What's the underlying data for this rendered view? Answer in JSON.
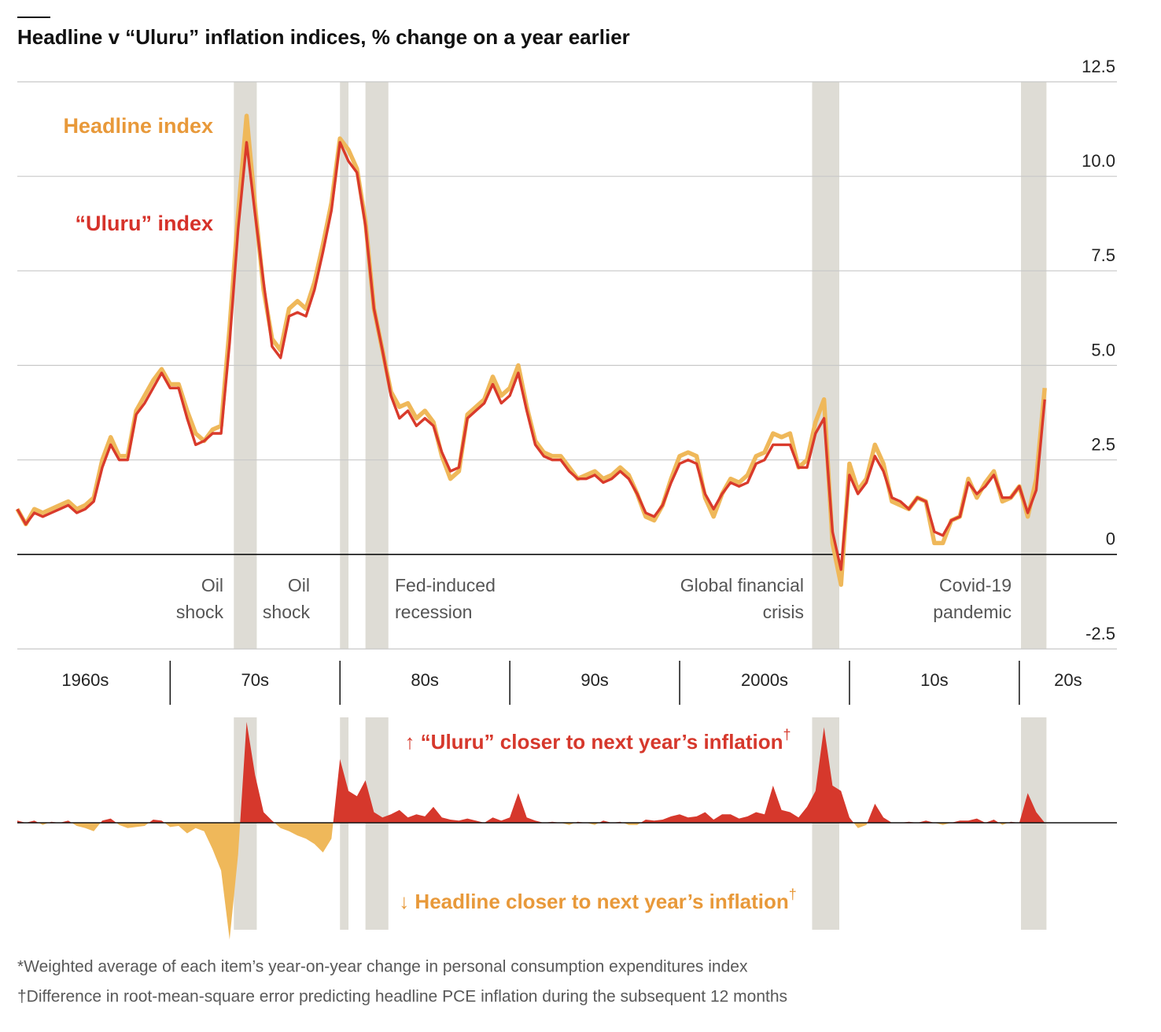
{
  "chart_data": [
    {
      "type": "line",
      "title": "Headline v “Uluru” inflation indices, % change on a year earlier",
      "xlim": [
        1961,
        2025.75
      ],
      "ylim": [
        -2.5,
        12.5
      ],
      "yticks": [
        12.5,
        {
          "value": 10,
          "label": "10.0"
        },
        {
          "value": 7.5,
          "label": "7.5"
        },
        {
          "value": 5,
          "label": "5.0"
        },
        2.5,
        0,
        -2.5
      ],
      "grid": true,
      "x": [
        1961,
        1961.5,
        1962,
        1962.5,
        1963,
        1963.5,
        1964,
        1964.5,
        1965,
        1965.5,
        1966,
        1966.5,
        1967,
        1967.5,
        1968,
        1968.5,
        1969,
        1969.5,
        1970,
        1970.5,
        1971,
        1971.5,
        1972,
        1972.5,
        1973,
        1973.5,
        1974,
        1974.5,
        1975,
        1975.5,
        1976,
        1976.5,
        1977,
        1977.5,
        1978,
        1978.5,
        1979,
        1979.5,
        1980,
        1980.5,
        1981,
        1981.5,
        1982,
        1982.5,
        1983,
        1983.5,
        1984,
        1984.5,
        1985,
        1985.5,
        1986,
        1986.5,
        1987,
        1987.5,
        1988,
        1988.5,
        1989,
        1989.5,
        1990,
        1990.5,
        1991,
        1991.5,
        1992,
        1992.5,
        1993,
        1993.5,
        1994,
        1994.5,
        1995,
        1995.5,
        1996,
        1996.5,
        1997,
        1997.5,
        1998,
        1998.5,
        1999,
        1999.5,
        2000,
        2000.5,
        2001,
        2001.5,
        2002,
        2002.5,
        2003,
        2003.5,
        2004,
        2004.5,
        2005,
        2005.5,
        2006,
        2006.5,
        2007,
        2007.5,
        2008,
        2008.5,
        2009,
        2009.5,
        2010,
        2010.5,
        2011,
        2011.5,
        2012,
        2012.5,
        2013,
        2013.5,
        2014,
        2014.5,
        2015,
        2015.5,
        2016,
        2016.5,
        2017,
        2017.5,
        2018,
        2018.5,
        2019,
        2019.5,
        2020,
        2020.5,
        2021,
        2021.5
      ],
      "series": [
        {
          "name": "Headline index",
          "color": "#efb85a",
          "label_color": "#e8993a",
          "values": [
            1.2,
            0.8,
            1.2,
            1.1,
            1.2,
            1.3,
            1.4,
            1.2,
            1.3,
            1.5,
            2.5,
            3.1,
            2.6,
            2.6,
            3.8,
            4.2,
            4.6,
            4.9,
            4.5,
            4.5,
            3.8,
            3.2,
            3.0,
            3.3,
            3.4,
            6.0,
            9.0,
            11.6,
            9.2,
            7.0,
            5.7,
            5.4,
            6.5,
            6.7,
            6.5,
            7.2,
            8.2,
            9.3,
            11.0,
            10.7,
            10.2,
            8.8,
            6.5,
            5.4,
            4.3,
            3.9,
            4.0,
            3.6,
            3.8,
            3.5,
            2.6,
            2.0,
            2.2,
            3.7,
            3.9,
            4.1,
            4.7,
            4.2,
            4.4,
            5.0,
            3.9,
            3.0,
            2.7,
            2.6,
            2.6,
            2.3,
            2.0,
            2.1,
            2.2,
            2.0,
            2.1,
            2.3,
            2.1,
            1.6,
            1.0,
            0.9,
            1.3,
            2.0,
            2.6,
            2.7,
            2.6,
            1.5,
            1.0,
            1.6,
            2.0,
            1.9,
            2.1,
            2.6,
            2.7,
            3.2,
            3.1,
            3.2,
            2.3,
            2.5,
            3.5,
            4.1,
            0.3,
            -0.8,
            2.4,
            1.7,
            2.0,
            2.9,
            2.4,
            1.4,
            1.3,
            1.2,
            1.5,
            1.4,
            0.3,
            0.3,
            0.9,
            1.0,
            2.0,
            1.5,
            1.9,
            2.2,
            1.4,
            1.5,
            1.8,
            1.0,
            2.0,
            4.4
          ]
        },
        {
          "name": "“Uluru” index",
          "color": "#d93a2b",
          "label_color": "#d6322a",
          "values": [
            1.2,
            0.8,
            1.1,
            1.0,
            1.1,
            1.2,
            1.3,
            1.1,
            1.2,
            1.4,
            2.3,
            2.9,
            2.5,
            2.5,
            3.7,
            4.0,
            4.4,
            4.8,
            4.4,
            4.4,
            3.6,
            2.9,
            3.0,
            3.2,
            3.2,
            5.6,
            8.6,
            10.9,
            9.0,
            7.2,
            5.5,
            5.2,
            6.3,
            6.4,
            6.3,
            7.0,
            8.0,
            9.1,
            10.9,
            10.4,
            10.1,
            8.7,
            6.5,
            5.4,
            4.2,
            3.6,
            3.8,
            3.4,
            3.6,
            3.4,
            2.7,
            2.2,
            2.3,
            3.6,
            3.8,
            4.0,
            4.5,
            4.0,
            4.2,
            4.8,
            3.8,
            2.9,
            2.6,
            2.5,
            2.5,
            2.2,
            2.0,
            2.0,
            2.1,
            1.9,
            2.0,
            2.2,
            2.0,
            1.6,
            1.1,
            1.0,
            1.3,
            1.9,
            2.4,
            2.5,
            2.4,
            1.6,
            1.2,
            1.6,
            1.9,
            1.8,
            1.9,
            2.4,
            2.5,
            2.9,
            2.9,
            2.9,
            2.3,
            2.3,
            3.2,
            3.6,
            0.6,
            -0.4,
            2.1,
            1.6,
            1.9,
            2.6,
            2.2,
            1.5,
            1.4,
            1.2,
            1.5,
            1.4,
            0.6,
            0.5,
            0.9,
            1.0,
            1.9,
            1.6,
            1.8,
            2.1,
            1.5,
            1.5,
            1.8,
            1.1,
            1.7,
            4.1
          ]
        }
      ],
      "shaded": [
        [
          1973.75,
          1975.1
        ],
        [
          1980.0,
          1980.5
        ],
        [
          1981.5,
          1982.85
        ],
        [
          2007.8,
          2009.4
        ],
        [
          2020.1,
          2021.6
        ]
      ],
      "annotations": [
        [
          "Oil",
          "shock"
        ],
        [
          "Oil",
          "shock"
        ],
        [
          "Fed-induced",
          "recession"
        ],
        [
          "Global financial",
          "crisis"
        ],
        [
          "Covid-19",
          "pandemic"
        ]
      ],
      "decades": {
        "labels": [
          "1960s",
          "70s",
          "80s",
          "90s",
          "2000s",
          "10s",
          "20s"
        ],
        "dividers": [
          1970,
          1980,
          1990,
          2000,
          2010,
          2020
        ]
      }
    },
    {
      "type": "area",
      "xlim": [
        1961,
        2025.75
      ],
      "ylim": [
        -1.1,
        1.0
      ],
      "color_above": "#d6382c",
      "color_below": "#efb85a",
      "label_above": {
        "text": "↑ “Uluru” closer to next year’s inflation",
        "mark": "†"
      },
      "label_below": {
        "text": "↓ Headline closer to next year’s inflation",
        "mark": "†"
      },
      "x": [
        1961,
        1961.5,
        1962,
        1962.5,
        1963,
        1963.5,
        1964,
        1964.5,
        1965,
        1965.5,
        1966,
        1966.5,
        1967,
        1967.5,
        1968,
        1968.5,
        1969,
        1969.5,
        1970,
        1970.5,
        1971,
        1971.5,
        1972,
        1972.5,
        1973,
        1973.5,
        1974,
        1974.5,
        1975,
        1975.5,
        1976,
        1976.5,
        1977,
        1977.5,
        1978,
        1978.5,
        1979,
        1979.5,
        1980,
        1980.5,
        1981,
        1981.5,
        1982,
        1982.5,
        1983,
        1983.5,
        1984,
        1984.5,
        1985,
        1985.5,
        1986,
        1986.5,
        1987,
        1987.5,
        1988,
        1988.5,
        1989,
        1989.5,
        1990,
        1990.5,
        1991,
        1991.5,
        1992,
        1992.5,
        1993,
        1993.5,
        1994,
        1994.5,
        1995,
        1995.5,
        1996,
        1996.5,
        1997,
        1997.5,
        1998,
        1998.5,
        1999,
        1999.5,
        2000,
        2000.5,
        2001,
        2001.5,
        2002,
        2002.5,
        2003,
        2003.5,
        2004,
        2004.5,
        2005,
        2005.5,
        2006,
        2006.5,
        2007,
        2007.5,
        2008,
        2008.5,
        2009,
        2009.5,
        2010,
        2010.5,
        2011,
        2011.5,
        2012,
        2012.5,
        2013,
        2013.5,
        2014,
        2014.5,
        2015,
        2015.5,
        2016,
        2016.5,
        2017,
        2017.5,
        2018,
        2018.5,
        2019,
        2019.5,
        2020,
        2020.5,
        2021,
        2021.5
      ],
      "values": [
        0.02,
        0.0,
        0.02,
        -0.02,
        0.01,
        0.0,
        0.02,
        -0.03,
        -0.05,
        -0.08,
        0.02,
        0.04,
        -0.02,
        -0.05,
        -0.04,
        -0.03,
        0.03,
        0.02,
        -0.04,
        -0.03,
        -0.1,
        -0.05,
        -0.08,
        -0.25,
        -0.45,
        -1.1,
        -0.3,
        0.95,
        0.45,
        0.1,
        0.02,
        -0.05,
        -0.08,
        -0.12,
        -0.15,
        -0.2,
        -0.28,
        -0.15,
        0.6,
        0.3,
        0.25,
        0.4,
        0.1,
        0.05,
        0.08,
        0.12,
        0.05,
        0.08,
        0.06,
        0.15,
        0.05,
        0.03,
        0.02,
        0.04,
        0.02,
        0.0,
        0.05,
        0.02,
        0.05,
        0.28,
        0.05,
        0.02,
        0.0,
        0.01,
        0.0,
        -0.02,
        0.01,
        0.0,
        -0.02,
        0.02,
        0.0,
        0.01,
        -0.02,
        -0.02,
        0.03,
        0.02,
        0.03,
        0.06,
        0.08,
        0.05,
        0.06,
        0.1,
        0.03,
        0.08,
        0.08,
        0.04,
        0.06,
        0.1,
        0.08,
        0.35,
        0.12,
        0.1,
        0.05,
        0.15,
        0.3,
        0.9,
        0.35,
        0.3,
        0.05,
        -0.05,
        -0.02,
        0.18,
        0.05,
        0.0,
        0.0,
        0.01,
        0.0,
        0.02,
        0.0,
        -0.02,
        0.0,
        0.02,
        0.02,
        0.04,
        0.0,
        0.03,
        -0.02,
        0.01,
        0.0,
        0.28,
        0.1,
        0.0
      ]
    }
  ],
  "footnotes": [
    "*Weighted average of each item’s year-on-year change in personal consumption expenditures index",
    "†Difference in root-mean-square error predicting headline PCE inflation during the subsequent 12 months"
  ]
}
